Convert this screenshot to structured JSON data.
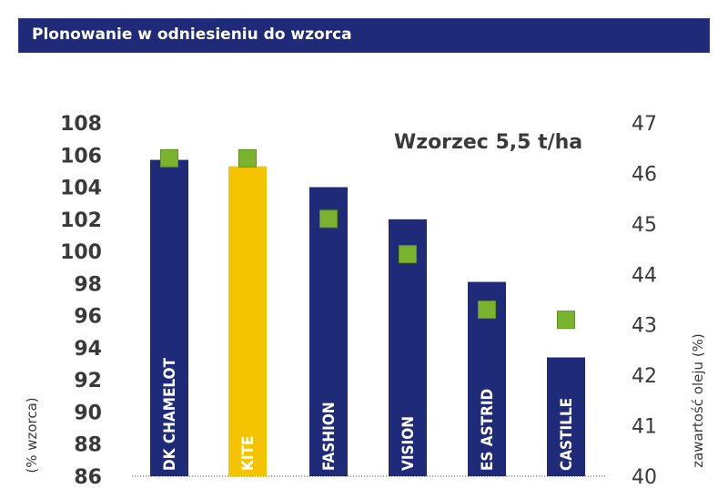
{
  "header": {
    "title": "Plonowanie w odniesieniu do wzorca"
  },
  "chart_data": {
    "type": "bar",
    "title": "Plonowanie w odniesieniu do wzorca",
    "annotation": "Wzorzec 5,5 t/ha",
    "categories": [
      "DK CHAMELOT",
      "KITE",
      "FASHION",
      "VISION",
      "ES ASTRID",
      "CASTILLE"
    ],
    "series": [
      {
        "values": [
          105.7,
          105.3,
          104.0,
          102.0,
          98.1,
          93.4
        ],
        "axis": "left",
        "marker": "bar",
        "colors": [
          "#1f2a78",
          "#f5c400",
          "#1f2a78",
          "#1f2a78",
          "#1f2a78",
          "#1f2a78"
        ]
      },
      {
        "values": [
          46.3,
          46.3,
          45.1,
          44.4,
          43.3,
          43.1
        ],
        "axis": "right",
        "marker": "square",
        "color": "#7ab32e"
      }
    ],
    "ylabel": "(% wzorca)",
    "ylim": [
      86,
      108
    ],
    "yticks": [
      86,
      88,
      90,
      92,
      94,
      96,
      98,
      100,
      102,
      104,
      106,
      108
    ],
    "y2label": "zawartość oleju (%)",
    "y2lim": [
      40,
      47
    ],
    "y2ticks": [
      40,
      41,
      42,
      43,
      44,
      45,
      46,
      47
    ],
    "grid": false,
    "colors": {
      "bar_default": "#1f2a78",
      "bar_highlight": "#f5c400",
      "marker": "#7ab32e",
      "header": "#1f2a78"
    }
  }
}
